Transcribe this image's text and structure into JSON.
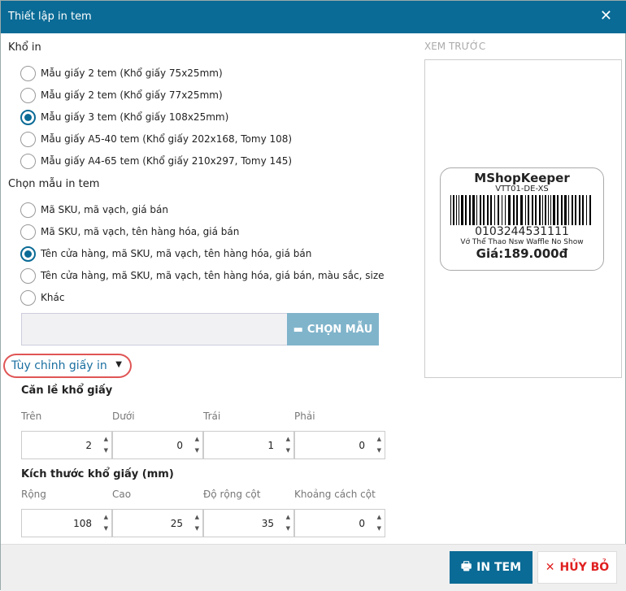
{
  "title": "Thiết lập in tem",
  "paper": {
    "heading": "Khổ in",
    "options": [
      "Mẫu giấy 2 tem (Khổ giấy 75x25mm)",
      "Mẫu giấy 2 tem (Khổ giấy 77x25mm)",
      "Mẫu giấy 3 tem (Khổ giấy 108x25mm)",
      "Mẫu giấy A5-40 tem (Khổ giấy 202x168, Tomy 108)",
      "Mẫu giấy A4-65 tem (Khổ giấy 210x297, Tomy 145)"
    ],
    "selected": 2
  },
  "template": {
    "heading": "Chọn mẫu in tem",
    "options": [
      "Mã SKU, mã vạch, giá bán",
      "Mã SKU, mã vạch, tên hàng hóa, giá bán",
      "Tên cửa hàng, mã SKU, mã vạch, tên hàng hóa, giá bán",
      "Tên cửa hàng, mã SKU, mã vạch, tên hàng hóa, giá bán, màu sắc, size",
      "Khác"
    ],
    "selected": 2,
    "file_value": "",
    "pick_label": "CHỌN MẪU"
  },
  "custom": {
    "label": "Tùy chỉnh giấy in",
    "margin": {
      "heading": "Căn lề khổ giấy",
      "fields": [
        {
          "label": "Trên",
          "value": "2"
        },
        {
          "label": "Dưới",
          "value": "0"
        },
        {
          "label": "Trái",
          "value": "1"
        },
        {
          "label": "Phải",
          "value": "0"
        }
      ]
    },
    "size": {
      "heading": "Kích thước khổ giấy (mm)",
      "fields": [
        {
          "label": "Rộng",
          "value": "108"
        },
        {
          "label": "Cao",
          "value": "25"
        },
        {
          "label": "Độ rộng cột",
          "value": "35"
        },
        {
          "label": "Khoảng cách cột",
          "value": "0"
        }
      ]
    }
  },
  "preview": {
    "label": "XEM TRƯỚC",
    "shop": "MShopKeeper",
    "sku": "VTT01-DE-XS",
    "barcode": "0103244531111",
    "name": "Vớ Thể Thao Nsw Waffle No Show",
    "price": "Giá:189.000đ"
  },
  "footer": {
    "print": "IN TEM",
    "cancel": "HỦY BỎ"
  },
  "colors": {
    "header": "#0a6b96",
    "accent": "#0a6b96",
    "cancel": "#e02020"
  }
}
